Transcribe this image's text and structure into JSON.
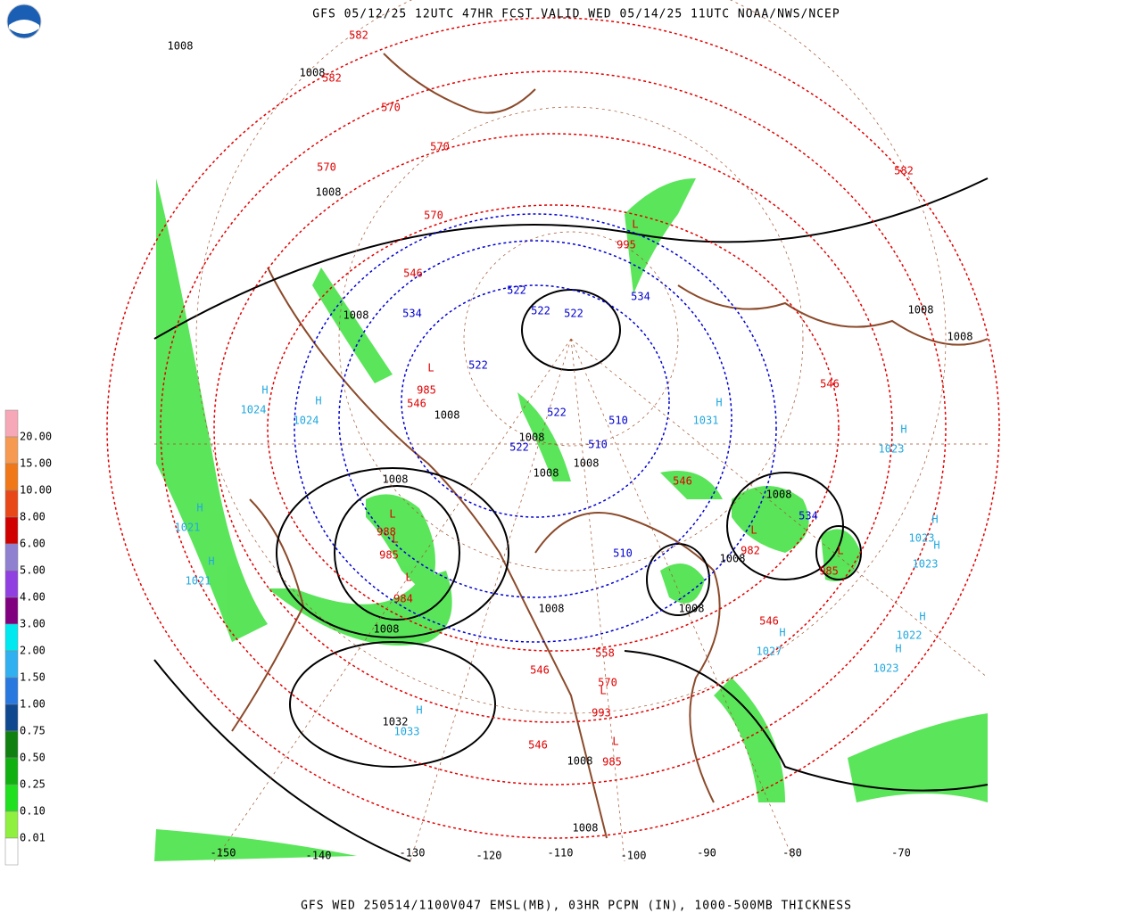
{
  "header": {
    "title": "GFS 05/12/25 12UTC 47HR FCST VALID WED 05/14/25 11UTC NOAA/NWS/NCEP"
  },
  "footer": {
    "text": "GFS WED 250514/1100V047 EMSL(MB), 03HR PCPN (IN), 1000-500MB THICKNESS"
  },
  "legend": {
    "labels": [
      "20.00",
      "15.00",
      "10.00",
      "8.00",
      "6.00",
      "5.00",
      "4.00",
      "3.00",
      "2.00",
      "1.50",
      "1.00",
      "0.75",
      "0.50",
      "0.25",
      "0.10",
      "0.01"
    ],
    "colors": [
      "#f7a8b8",
      "#f59a50",
      "#f07818",
      "#e84818",
      "#d00000",
      "#9080d0",
      "#9040e0",
      "#800080",
      "#00e8f0",
      "#30b0f0",
      "#2878e0",
      "#104890",
      "#108010",
      "#10b010",
      "#20e020",
      "#90f040",
      "#ffffff"
    ]
  },
  "map": {
    "longitudes": [
      "-150",
      "-140",
      "-130",
      "-120",
      "-110",
      "-100",
      "-90",
      "-80",
      "-70"
    ],
    "highs": [
      {
        "symbol": "H",
        "pressure": "1024"
      },
      {
        "symbol": "H",
        "pressure": "1024"
      },
      {
        "symbol": "H",
        "pressure": "1021"
      },
      {
        "symbol": "H",
        "pressure": "1021"
      },
      {
        "symbol": "H",
        "pressure": "1033"
      },
      {
        "symbol": "H",
        "pressure": "1031"
      },
      {
        "symbol": "H",
        "pressure": "1023"
      },
      {
        "symbol": "H",
        "pressure": "1023"
      },
      {
        "symbol": "H",
        "pressure": "1023"
      },
      {
        "symbol": "H",
        "pressure": "1022"
      },
      {
        "symbol": "H",
        "pressure": "1023"
      },
      {
        "symbol": "H",
        "pressure": "1027"
      }
    ],
    "lows": [
      {
        "symbol": "L",
        "pressure": "985"
      },
      {
        "symbol": "L",
        "pressure": "988"
      },
      {
        "symbol": "L",
        "pressure": "985"
      },
      {
        "symbol": "L",
        "pressure": "984"
      },
      {
        "symbol": "L",
        "pressure": "982"
      },
      {
        "symbol": "L",
        "pressure": "985"
      },
      {
        "symbol": "L",
        "pressure": "993"
      },
      {
        "symbol": "L",
        "pressure": "985"
      },
      {
        "symbol": "L",
        "pressure": "995"
      }
    ],
    "isobar_labels": [
      "1008",
      "1008",
      "1008",
      "1008",
      "1008",
      "1008",
      "1008",
      "1008",
      "1008",
      "1008",
      "1008",
      "1008",
      "1008",
      "1008",
      "1008",
      "1008",
      "1008",
      "1008",
      "1032"
    ],
    "cold_thickness_labels": [
      "534",
      "522",
      "522",
      "522",
      "522",
      "534",
      "522",
      "510",
      "522",
      "510",
      "534",
      "510"
    ],
    "warm_thickness_labels": [
      "582",
      "582",
      "570",
      "570",
      "570",
      "570",
      "546",
      "546",
      "546",
      "546",
      "546",
      "546",
      "546",
      "558",
      "570",
      "582"
    ]
  }
}
